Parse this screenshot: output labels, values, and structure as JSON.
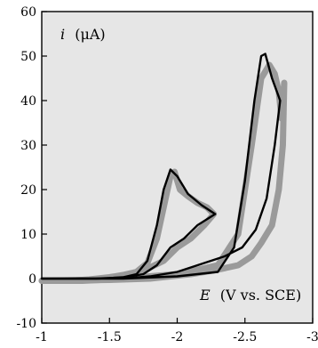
{
  "chart_data": {
    "type": "line",
    "xlabel": {
      "symbol": "E",
      "unit": "(V vs. SCE)"
    },
    "ylabel": {
      "symbol": "i",
      "unit": "(μA)"
    },
    "xlim": [
      -1,
      -3
    ],
    "ylim": [
      -10,
      60
    ],
    "x_ticks": [
      -1,
      -1.5,
      -2,
      -2.5,
      -3
    ],
    "x_tick_labels": [
      "-1",
      "-1.5",
      "-2",
      "-2.5",
      "-3"
    ],
    "y_ticks": [
      -10,
      0,
      10,
      20,
      30,
      40,
      50,
      60
    ],
    "y_tick_labels": [
      "-10",
      "0",
      "10",
      "20",
      "30",
      "40",
      "50",
      "60"
    ],
    "grid": false,
    "colors": {
      "series_gray": "#9a9a9a",
      "series_black": "#000000",
      "plot_background": "#e6e6e6"
    },
    "series": [
      {
        "style": "gray-thick",
        "points": [
          [
            -1.0,
            -0.5
          ],
          [
            -1.2,
            -0.5
          ],
          [
            -1.35,
            -0.2
          ],
          [
            -1.5,
            0.3
          ],
          [
            -1.6,
            0.8
          ],
          [
            -1.7,
            1.5
          ],
          [
            -1.78,
            3.5
          ],
          [
            -1.85,
            9
          ],
          [
            -1.9,
            16
          ],
          [
            -1.95,
            23
          ],
          [
            -1.98,
            24
          ],
          [
            -2.02,
            20
          ],
          [
            -2.08,
            18.5
          ],
          [
            -2.15,
            17
          ],
          [
            -2.22,
            16
          ],
          [
            -2.27,
            14.5
          ],
          [
            -2.2,
            12
          ],
          [
            -2.1,
            9
          ],
          [
            -2.0,
            7
          ],
          [
            -1.9,
            4
          ],
          [
            -1.8,
            2.5
          ],
          [
            -1.7,
            1
          ],
          [
            -1.6,
            0.3
          ],
          [
            -1.5,
            -0.2
          ],
          [
            -1.3,
            -0.5
          ],
          [
            -1.0,
            -0.5
          ]
        ]
      },
      {
        "style": "gray-thick",
        "points": [
          [
            -1.0,
            -0.5
          ],
          [
            -1.5,
            -0.2
          ],
          [
            -2.0,
            1.0
          ],
          [
            -2.3,
            3
          ],
          [
            -2.45,
            10
          ],
          [
            -2.55,
            30
          ],
          [
            -2.62,
            45
          ],
          [
            -2.68,
            48
          ],
          [
            -2.72,
            46
          ],
          [
            -2.75,
            42
          ],
          [
            -2.77,
            36
          ],
          [
            -2.78,
            40
          ],
          [
            -2.79,
            44
          ],
          [
            -2.78,
            30
          ],
          [
            -2.75,
            20
          ],
          [
            -2.7,
            12
          ],
          [
            -2.62,
            8
          ],
          [
            -2.55,
            5
          ],
          [
            -2.45,
            3
          ],
          [
            -2.3,
            2
          ],
          [
            -2.1,
            1
          ],
          [
            -1.8,
            0
          ],
          [
            -1.5,
            -0.3
          ],
          [
            -1.0,
            -0.5
          ]
        ]
      },
      {
        "style": "black",
        "points": [
          [
            -1.0,
            0
          ],
          [
            -1.4,
            0
          ],
          [
            -1.6,
            0.3
          ],
          [
            -1.7,
            1
          ],
          [
            -1.78,
            4
          ],
          [
            -1.85,
            12
          ],
          [
            -1.9,
            20
          ],
          [
            -1.95,
            24.5
          ],
          [
            -2.0,
            23
          ],
          [
            -2.08,
            19
          ],
          [
            -2.18,
            16.5
          ],
          [
            -2.28,
            14.5
          ],
          [
            -2.15,
            12
          ],
          [
            -2.05,
            9
          ],
          [
            -1.95,
            7
          ],
          [
            -1.85,
            3
          ],
          [
            -1.75,
            1
          ],
          [
            -1.6,
            0.2
          ],
          [
            -1.4,
            0
          ],
          [
            -1.0,
            0
          ]
        ]
      },
      {
        "style": "black",
        "points": [
          [
            -1.0,
            0
          ],
          [
            -1.6,
            0
          ],
          [
            -2.0,
            0.5
          ],
          [
            -2.3,
            1.5
          ],
          [
            -2.42,
            7
          ],
          [
            -2.5,
            22
          ],
          [
            -2.57,
            40
          ],
          [
            -2.62,
            50
          ],
          [
            -2.65,
            50.5
          ],
          [
            -2.7,
            45
          ],
          [
            -2.76,
            40
          ],
          [
            -2.72,
            30
          ],
          [
            -2.66,
            18
          ],
          [
            -2.58,
            11
          ],
          [
            -2.48,
            7
          ],
          [
            -2.35,
            5
          ],
          [
            -2.2,
            3.5
          ],
          [
            -2.0,
            1.5
          ],
          [
            -1.8,
            0.5
          ],
          [
            -1.6,
            0
          ],
          [
            -1.0,
            0
          ]
        ]
      }
    ]
  }
}
